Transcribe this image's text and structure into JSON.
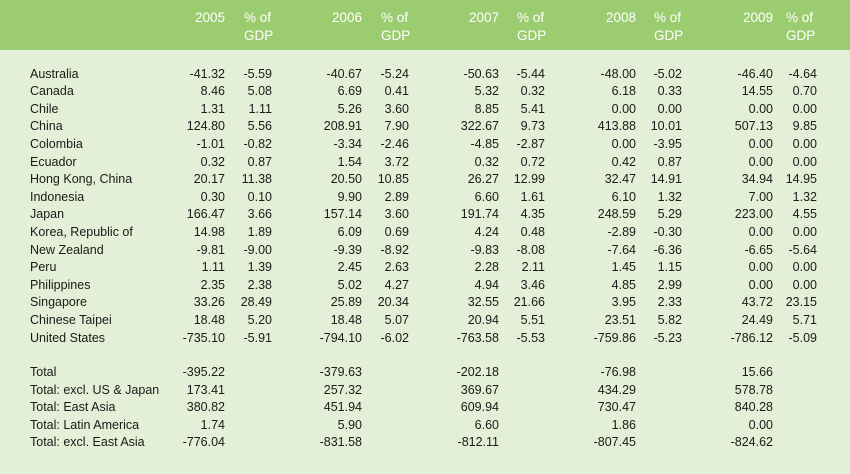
{
  "header": {
    "years": [
      "2005",
      "2006",
      "2007",
      "2008",
      "2009"
    ],
    "pct_line1": "% of",
    "pct_line2": "GDP"
  },
  "countries": [
    {
      "name": "Australia",
      "v": [
        "-41.32",
        "-5.59",
        "-40.67",
        "-5.24",
        "-50.63",
        "-5.44",
        "-48.00",
        "-5.02",
        "-46.40",
        "-4.64"
      ]
    },
    {
      "name": "Canada",
      "v": [
        "8.46",
        "5.08",
        "6.69",
        "0.41",
        "5.32",
        "0.32",
        "6.18",
        "0.33",
        "14.55",
        "0.70"
      ]
    },
    {
      "name": "Chile",
      "v": [
        "1.31",
        "1.11",
        "5.26",
        "3.60",
        "8.85",
        "5.41",
        "0.00",
        "0.00",
        "0.00",
        "0.00"
      ]
    },
    {
      "name": "China",
      "v": [
        "124.80",
        "5.56",
        "208.91",
        "7.90",
        "322.67",
        "9.73",
        "413.88",
        "10.01",
        "507.13",
        "9.85"
      ]
    },
    {
      "name": "Colombia",
      "v": [
        "-1.01",
        "-0.82",
        "-3.34",
        "-2.46",
        "-4.85",
        "-2.87",
        "0.00",
        "-3.95",
        "0.00",
        "0.00"
      ]
    },
    {
      "name": "Ecuador",
      "v": [
        "0.32",
        "0.87",
        "1.54",
        "3.72",
        "0.32",
        "0.72",
        "0.42",
        "0.87",
        "0.00",
        "0.00"
      ]
    },
    {
      "name": "Hong Kong, China",
      "v": [
        "20.17",
        "11.38",
        "20.50",
        "10.85",
        "26.27",
        "12.99",
        "32.47",
        "14.91",
        "34.94",
        "14.95"
      ]
    },
    {
      "name": "Indonesia",
      "v": [
        "0.30",
        "0.10",
        "9.90",
        "2.89",
        "6.60",
        "1.61",
        "6.10",
        "1.32",
        "7.00",
        "1.32"
      ]
    },
    {
      "name": "Japan",
      "v": [
        "166.47",
        "3.66",
        "157.14",
        "3.60",
        "191.74",
        "4.35",
        "248.59",
        "5.29",
        "223.00",
        "4.55"
      ]
    },
    {
      "name": "Korea, Republic of",
      "v": [
        "14.98",
        "1.89",
        "6.09",
        "0.69",
        "4.24",
        "0.48",
        "-2.89",
        "-0.30",
        "0.00",
        "0.00"
      ]
    },
    {
      "name": "New Zealand",
      "v": [
        "-9.81",
        "-9.00",
        "-9.39",
        "-8.92",
        "-9.83",
        "-8.08",
        "-7.64",
        "-6.36",
        "-6.65",
        "-5.64"
      ]
    },
    {
      "name": "Peru",
      "v": [
        "1.11",
        "1.39",
        "2.45",
        "2.63",
        "2.28",
        "2.11",
        "1.45",
        "1.15",
        "0.00",
        "0.00"
      ]
    },
    {
      "name": "Philippines",
      "v": [
        "2.35",
        "2.38",
        "5.02",
        "4.27",
        "4.94",
        "3.46",
        "4.85",
        "2.99",
        "0.00",
        "0.00"
      ]
    },
    {
      "name": "Singapore",
      "v": [
        "33.26",
        "28.49",
        "25.89",
        "20.34",
        "32.55",
        "21.66",
        "3.95",
        "2.33",
        "43.72",
        "23.15"
      ]
    },
    {
      "name": "Chinese Taipei",
      "v": [
        "18.48",
        "5.20",
        "18.48",
        "5.07",
        "20.94",
        "5.51",
        "23.51",
        "5.82",
        "24.49",
        "5.71"
      ]
    },
    {
      "name": "United States",
      "v": [
        "-735.10",
        "-5.91",
        "-794.10",
        "-6.02",
        "-763.58",
        "-5.53",
        "-759.86",
        "-5.23",
        "-786.12",
        "-5.09"
      ]
    }
  ],
  "totals": [
    {
      "name": "Total",
      "v": [
        "-395.22",
        "-379.63",
        "-202.18",
        "-76.98",
        "15.66"
      ]
    },
    {
      "name": "Total: excl. US & Japan",
      "v": [
        "173.41",
        "257.32",
        "369.67",
        "434.29",
        "578.78"
      ]
    },
    {
      "name": "Total: East Asia",
      "v": [
        "380.82",
        "451.94",
        "609.94",
        "730.47",
        "840.28"
      ]
    },
    {
      "name": "Total: Latin America",
      "v": [
        "1.74",
        "5.90",
        "6.60",
        "1.86",
        "0.00"
      ]
    },
    {
      "name": "Total: excl. East Asia",
      "v": [
        "-776.04",
        "-831.58",
        "-812.11",
        "-807.45",
        "-824.62"
      ]
    }
  ]
}
